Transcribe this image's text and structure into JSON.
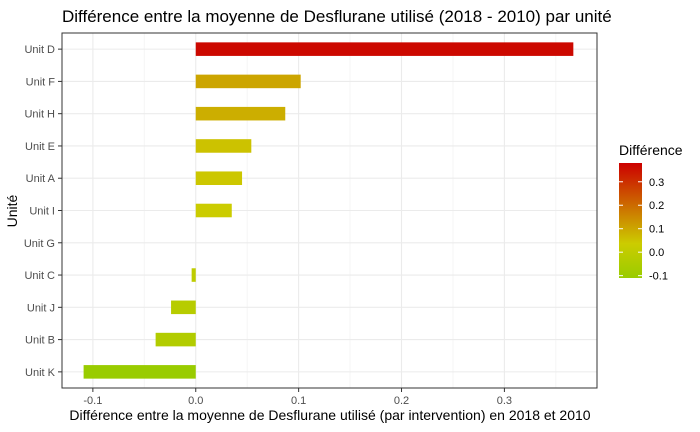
{
  "chart_data": {
    "type": "bar",
    "orientation": "horizontal",
    "title": "Différence entre la moyenne de Desflurane utilisé (2018 - 2010) par unité",
    "xlabel": "Différence entre la moyenne de Desflurane utilisé (par intervention) en 2018 et 2010",
    "ylabel": "Unité",
    "categories": [
      "Unit D",
      "Unit F",
      "Unit H",
      "Unit E",
      "Unit A",
      "Unit I",
      "Unit G",
      "Unit C",
      "Unit J",
      "Unit B",
      "Unit K"
    ],
    "values": [
      0.367,
      0.102,
      0.087,
      0.054,
      0.045,
      0.035,
      0.0,
      -0.004,
      -0.024,
      -0.039,
      -0.109
    ],
    "xlim": [
      -0.13,
      0.39
    ],
    "xticks": [
      -0.1,
      0.0,
      0.1,
      0.2,
      0.3
    ],
    "xtick_labels": [
      "-0.1",
      "0.0",
      "0.1",
      "0.2",
      "0.3"
    ],
    "grid": true,
    "legend": {
      "title": "Différence",
      "placement": "right",
      "ticks": [
        0.3,
        0.2,
        0.1,
        0.0,
        -0.1
      ],
      "tick_labels": [
        "0.3",
        "0.2",
        "0.1",
        "0.0",
        "-0.1"
      ],
      "range": [
        -0.11,
        0.38
      ]
    },
    "colors": {
      "low": "#99cc00",
      "mid": "#cccc00",
      "high": "#cc0000",
      "grid_major": "#ebebeb",
      "grid_minor": "#f5f5f5",
      "panel_border": "#333333"
    }
  }
}
